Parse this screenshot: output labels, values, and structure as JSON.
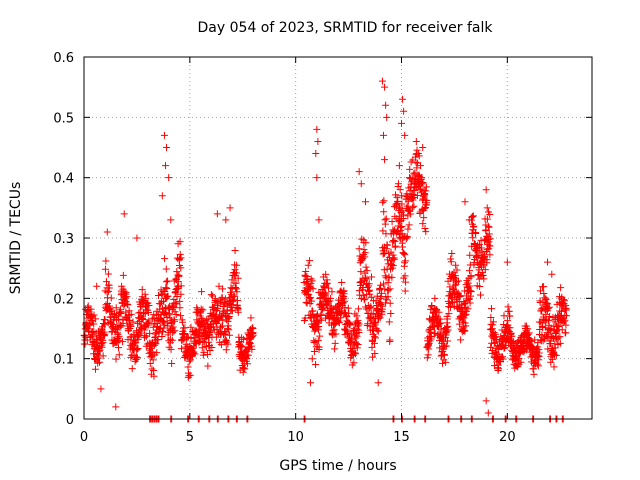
{
  "chart_data": {
    "type": "scatter",
    "title": "Day 054 of 2023, SRMTID for receiver falk",
    "xlabel": "GPS time / hours",
    "ylabel": "SRMTID / TECUs",
    "xlim": [
      0,
      24
    ],
    "ylim": [
      0,
      0.6
    ],
    "xticks": [
      0,
      5,
      10,
      15,
      20
    ],
    "xtick_labels": [
      "0",
      "5",
      "10",
      "15",
      "20"
    ],
    "yticks": [
      0,
      0.1,
      0.2,
      0.3,
      0.4,
      0.5,
      0.6
    ],
    "ytick_labels": [
      "0",
      "0.1",
      "0.2",
      "0.3",
      "0.4",
      "0.5",
      "0.6"
    ],
    "grid": true,
    "legend": "none",
    "marker": "plus",
    "series_color": "#ff0000",
    "segments": [
      {
        "start": 0.0,
        "end": 1.0,
        "base": 0.14,
        "amp": 0.05
      },
      {
        "start": 1.0,
        "end": 2.0,
        "base": 0.17,
        "amp": 0.07
      },
      {
        "start": 2.0,
        "end": 3.0,
        "base": 0.15,
        "amp": 0.06
      },
      {
        "start": 3.0,
        "end": 3.8,
        "base": 0.15,
        "amp": 0.07
      },
      {
        "start": 3.8,
        "end": 4.6,
        "base": 0.2,
        "amp": 0.09
      },
      {
        "start": 4.6,
        "end": 5.5,
        "base": 0.13,
        "amp": 0.05
      },
      {
        "start": 5.5,
        "end": 6.5,
        "base": 0.16,
        "amp": 0.06
      },
      {
        "start": 6.5,
        "end": 7.3,
        "base": 0.19,
        "amp": 0.07
      },
      {
        "start": 7.3,
        "end": 8.0,
        "base": 0.12,
        "amp": 0.04
      },
      {
        "start": 10.4,
        "end": 11.2,
        "base": 0.18,
        "amp": 0.08
      },
      {
        "start": 11.2,
        "end": 12.3,
        "base": 0.18,
        "amp": 0.05
      },
      {
        "start": 12.3,
        "end": 13.0,
        "base": 0.15,
        "amp": 0.05
      },
      {
        "start": 13.0,
        "end": 13.6,
        "base": 0.22,
        "amp": 0.09
      },
      {
        "start": 13.6,
        "end": 14.1,
        "base": 0.16,
        "amp": 0.06
      },
      {
        "start": 14.1,
        "end": 14.5,
        "base": 0.28,
        "amp": 0.12
      },
      {
        "start": 14.5,
        "end": 15.2,
        "base": 0.3,
        "amp": 0.09
      },
      {
        "start": 15.2,
        "end": 16.2,
        "base": 0.38,
        "amp": 0.07
      },
      {
        "start": 16.2,
        "end": 17.2,
        "base": 0.15,
        "amp": 0.05
      },
      {
        "start": 17.2,
        "end": 18.3,
        "base": 0.2,
        "amp": 0.06
      },
      {
        "start": 18.3,
        "end": 19.2,
        "base": 0.28,
        "amp": 0.07
      },
      {
        "start": 19.2,
        "end": 20.2,
        "base": 0.13,
        "amp": 0.05
      },
      {
        "start": 20.2,
        "end": 21.5,
        "base": 0.12,
        "amp": 0.04
      },
      {
        "start": 21.5,
        "end": 22.8,
        "base": 0.15,
        "amp": 0.06
      }
    ],
    "peaks": [
      {
        "x": 0.6,
        "y": 0.22
      },
      {
        "x": 1.1,
        "y": 0.31
      },
      {
        "x": 1.9,
        "y": 0.34
      },
      {
        "x": 2.5,
        "y": 0.3
      },
      {
        "x": 3.8,
        "y": 0.47
      },
      {
        "x": 3.9,
        "y": 0.45
      },
      {
        "x": 3.85,
        "y": 0.42
      },
      {
        "x": 4.0,
        "y": 0.4
      },
      {
        "x": 3.7,
        "y": 0.37
      },
      {
        "x": 4.1,
        "y": 0.33
      },
      {
        "x": 6.3,
        "y": 0.34
      },
      {
        "x": 6.7,
        "y": 0.33
      },
      {
        "x": 6.9,
        "y": 0.35
      },
      {
        "x": 11.0,
        "y": 0.48
      },
      {
        "x": 11.05,
        "y": 0.46
      },
      {
        "x": 10.95,
        "y": 0.44
      },
      {
        "x": 11.0,
        "y": 0.4
      },
      {
        "x": 11.1,
        "y": 0.33
      },
      {
        "x": 13.0,
        "y": 0.41
      },
      {
        "x": 13.1,
        "y": 0.39
      },
      {
        "x": 13.3,
        "y": 0.36
      },
      {
        "x": 14.1,
        "y": 0.56
      },
      {
        "x": 14.2,
        "y": 0.55
      },
      {
        "x": 14.25,
        "y": 0.52
      },
      {
        "x": 14.3,
        "y": 0.5
      },
      {
        "x": 14.15,
        "y": 0.47
      },
      {
        "x": 14.2,
        "y": 0.43
      },
      {
        "x": 15.05,
        "y": 0.53
      },
      {
        "x": 15.1,
        "y": 0.51
      },
      {
        "x": 15.0,
        "y": 0.49
      },
      {
        "x": 15.15,
        "y": 0.47
      },
      {
        "x": 14.9,
        "y": 0.42
      },
      {
        "x": 15.7,
        "y": 0.46
      },
      {
        "x": 15.8,
        "y": 0.44
      },
      {
        "x": 16.0,
        "y": 0.45
      },
      {
        "x": 18.0,
        "y": 0.36
      },
      {
        "x": 18.2,
        "y": 0.33
      },
      {
        "x": 19.0,
        "y": 0.38
      },
      {
        "x": 19.05,
        "y": 0.35
      },
      {
        "x": 20.0,
        "y": 0.26
      },
      {
        "x": 21.9,
        "y": 0.26
      },
      {
        "x": 22.1,
        "y": 0.24
      }
    ],
    "zeros_x": [
      3.1,
      3.2,
      3.3,
      3.4,
      3.5,
      4.1,
      4.9,
      5.4,
      5.9,
      6.3,
      6.8,
      7.2,
      7.7,
      10.4,
      14.6,
      15.0,
      15.6,
      16.1,
      17.2,
      17.8,
      18.3,
      19.3,
      19.9,
      20.4,
      21.2,
      22.0,
      22.3,
      22.6
    ],
    "low_points": [
      {
        "x": 1.5,
        "y": 0.02
      },
      {
        "x": 19.1,
        "y": 0.01
      },
      {
        "x": 19.0,
        "y": 0.03
      },
      {
        "x": 13.9,
        "y": 0.06
      },
      {
        "x": 10.7,
        "y": 0.06
      },
      {
        "x": 0.8,
        "y": 0.05
      }
    ]
  }
}
